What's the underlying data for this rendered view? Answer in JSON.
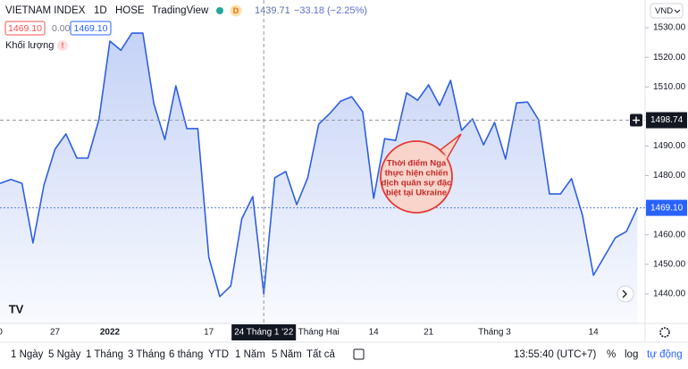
{
  "header": {
    "symbol": "VIETNAM INDEX",
    "interval": "1D",
    "exchange": "HOSE",
    "source": "TradingView",
    "badge": "D",
    "close": "1439.71",
    "change": "−33.18 (−2.25%)",
    "bid": "1469.10",
    "spread": "0.00",
    "ask": "1469.10",
    "volume_label": "Khối lượng",
    "currency": "VND"
  },
  "toolbar": {
    "ranges": [
      "1 Ngày",
      "5 Ngày",
      "1 Tháng",
      "3 Tháng",
      "6 tháng",
      "YTD",
      "1 Năm",
      "5 Năm",
      "Tất cả"
    ],
    "clock": "13:55:40 (UTC+7)",
    "percent": "%",
    "log": "log",
    "auto": "tự động"
  },
  "chart_data": {
    "type": "area",
    "categories": [
      "0",
      null,
      null,
      null,
      null,
      "27",
      null,
      null,
      null,
      null,
      "2022",
      null,
      null,
      null,
      null,
      null,
      null,
      null,
      null,
      "17",
      null,
      null,
      null,
      null,
      "24 Tháng 1 '22",
      null,
      null,
      null,
      null,
      "Tháng Hai",
      null,
      null,
      null,
      null,
      "14",
      null,
      null,
      null,
      null,
      "21",
      null,
      null,
      null,
      null,
      null,
      "Tháng 3",
      null,
      null,
      null,
      null,
      null,
      null,
      null,
      null,
      "14",
      null,
      null,
      null,
      null
    ],
    "series": [
      {
        "name": "VIETNAM INDEX",
        "color": "#2f5fe0",
        "values": [
          1477.4,
          1478.7,
          1477.4,
          1457.2,
          1476.8,
          1488.9,
          1494.1,
          1485.9,
          1485.9,
          1498.9,
          1525.5,
          1522.4,
          1528.2,
          1528.2,
          1504.3,
          1492.2,
          1510.4,
          1495.9,
          1495.9,
          1452.4,
          1439.1,
          1442.7,
          1465.4,
          1472.9,
          1440.0,
          1479.3,
          1481.4,
          1470.2,
          1479.3,
          1497.4,
          1501.0,
          1505.2,
          1506.7,
          1501.6,
          1472.3,
          1492.5,
          1491.9,
          1508.0,
          1505.5,
          1510.7,
          1503.7,
          1512.2,
          1495.3,
          1499.2,
          1490.4,
          1498.0,
          1485.6,
          1504.6,
          1504.9,
          1498.9,
          1473.8,
          1473.8,
          1479.0,
          1466.6,
          1446.3,
          1452.7,
          1459.0,
          1461.1,
          1469.1
        ]
      }
    ],
    "ylim": [
      1430,
      1539.4
    ],
    "yticks": [
      {
        "value": 1440,
        "label": "1440.00"
      },
      {
        "value": 1450,
        "label": "1450.00"
      },
      {
        "value": 1460,
        "label": "1460.00"
      },
      {
        "value": 1470,
        "label": "1470.00"
      },
      {
        "value": 1480,
        "label": "1480.00"
      },
      {
        "value": 1490,
        "label": "1490.00"
      },
      {
        "value": 1500,
        "label": "1500.00"
      },
      {
        "value": 1510,
        "label": "1510.00"
      },
      {
        "value": 1520,
        "label": "1520.00"
      },
      {
        "value": 1530,
        "label": "1530.00"
      }
    ],
    "grid": false,
    "crosshair_index": 24,
    "crosshair_price": 1498.74,
    "last_price": {
      "value": 1469.1,
      "label": "1469.10"
    },
    "annotation": [
      "Thời điểm Nga",
      "thực hiện chiến",
      "dịch quân sự đặc",
      "biệt tại Ukraine"
    ]
  }
}
